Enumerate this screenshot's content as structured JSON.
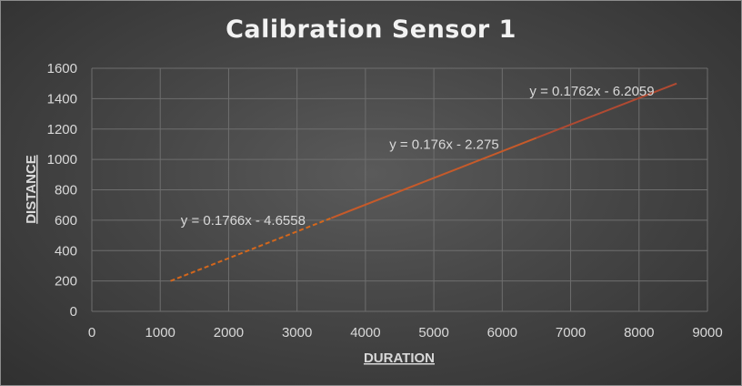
{
  "chart_data": {
    "type": "line",
    "title": "Calibration Sensor 1",
    "xlabel": "DURATION",
    "ylabel": "DISTANCE",
    "xlim": [
      0,
      9000
    ],
    "ylim": [
      0,
      1600
    ],
    "x_ticks": [
      0,
      1000,
      2000,
      3000,
      4000,
      5000,
      6000,
      7000,
      8000,
      9000
    ],
    "y_ticks": [
      0,
      200,
      400,
      600,
      800,
      1000,
      1200,
      1400,
      1600
    ],
    "grid": true,
    "legend": "none",
    "series": [
      {
        "color": "#d4671c",
        "style": "dashed",
        "x": [
          1150,
          3500
        ],
        "y": [
          200,
          614
        ]
      },
      {
        "color": "#c65a2a",
        "style": "solid",
        "x": [
          3500,
          6500
        ],
        "y": [
          614,
          1142
        ]
      },
      {
        "color": "#b04a32",
        "style": "solid",
        "x": [
          6500,
          8550
        ],
        "y": [
          1142,
          1500
        ]
      }
    ],
    "annotations": [
      {
        "text": "y = 0.1766x - 4.6558",
        "x": 1300,
        "y": 600
      },
      {
        "text": "y = 0.176x - 2.275",
        "x": 4350,
        "y": 1100
      },
      {
        "text": "y = 0.1762x - 6.2059",
        "x": 6400,
        "y": 1450
      }
    ],
    "colors": {
      "grid": "#6e6e6e",
      "text": "#d9d9d9",
      "title": "#f2f2f2"
    }
  }
}
